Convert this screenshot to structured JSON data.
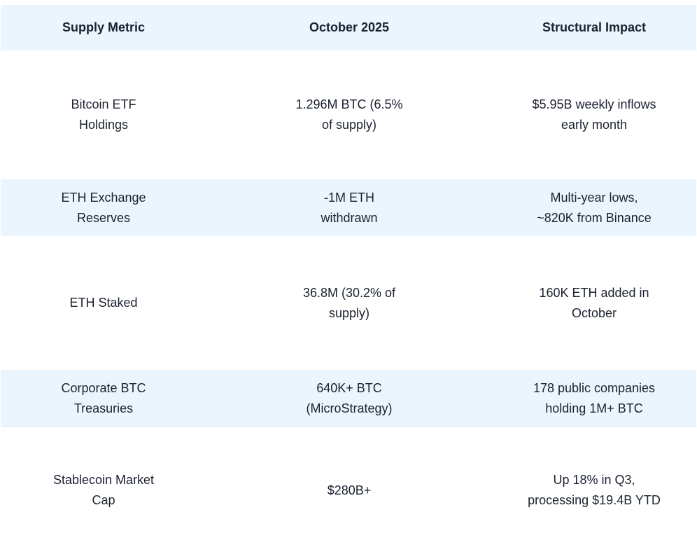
{
  "table": {
    "headers": [
      "Supply Metric",
      "October 2025",
      "Structural Impact"
    ],
    "rows": [
      [
        "Bitcoin ETF\nHoldings",
        "1.296M BTC (6.5%\nof supply)",
        "$5.95B weekly inflows\nearly month"
      ],
      [
        "ETH Exchange\nReserves",
        "-1M ETH\nwithdrawn",
        "Multi-year lows,\n~820K from Binance"
      ],
      [
        "ETH Staked",
        "36.8M (30.2% of\nsupply)",
        "160K ETH added in\nOctober"
      ],
      [
        "Corporate BTC\nTreasuries",
        "640K+ BTC\n(MicroStrategy)",
        "178 public companies\nholding 1M+ BTC"
      ],
      [
        "Stablecoin Market\nCap",
        "$280B+",
        "Up 18% in Q3,\nprocessing $19.4B YTD"
      ]
    ]
  },
  "colors": {
    "header_bg": "#ebf5fe",
    "stripe_bg": "#ebf5fe",
    "text": "#1b2230"
  }
}
